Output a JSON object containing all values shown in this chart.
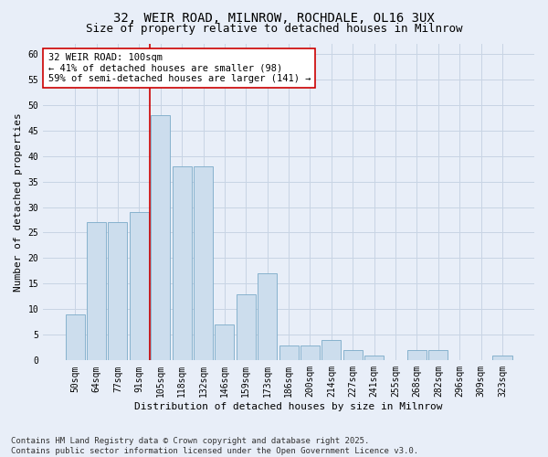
{
  "title1": "32, WEIR ROAD, MILNROW, ROCHDALE, OL16 3UX",
  "title2": "Size of property relative to detached houses in Milnrow",
  "xlabel": "Distribution of detached houses by size in Milnrow",
  "ylabel": "Number of detached properties",
  "categories": [
    "50sqm",
    "64sqm",
    "77sqm",
    "91sqm",
    "105sqm",
    "118sqm",
    "132sqm",
    "146sqm",
    "159sqm",
    "173sqm",
    "186sqm",
    "200sqm",
    "214sqm",
    "227sqm",
    "241sqm",
    "255sqm",
    "268sqm",
    "282sqm",
    "296sqm",
    "309sqm",
    "323sqm"
  ],
  "values": [
    9,
    27,
    27,
    29,
    48,
    38,
    38,
    7,
    13,
    17,
    3,
    3,
    4,
    2,
    1,
    0,
    2,
    2,
    0,
    0,
    1
  ],
  "bar_color": "#ccdded",
  "bar_edge_color": "#7aaac8",
  "grid_color": "#c8d4e4",
  "background_color": "#e8eef8",
  "vline_x_index": 4,
  "vline_color": "#cc0000",
  "annotation_text": "32 WEIR ROAD: 100sqm\n← 41% of detached houses are smaller (98)\n59% of semi-detached houses are larger (141) →",
  "annotation_box_color": "#ffffff",
  "annotation_box_edge": "#cc0000",
  "ylim": [
    0,
    62
  ],
  "yticks": [
    0,
    5,
    10,
    15,
    20,
    25,
    30,
    35,
    40,
    45,
    50,
    55,
    60
  ],
  "footer": "Contains HM Land Registry data © Crown copyright and database right 2025.\nContains public sector information licensed under the Open Government Licence v3.0.",
  "title_fontsize": 10,
  "subtitle_fontsize": 9,
  "axis_label_fontsize": 8,
  "tick_fontsize": 7,
  "annotation_fontsize": 7.5,
  "footer_fontsize": 6.5
}
